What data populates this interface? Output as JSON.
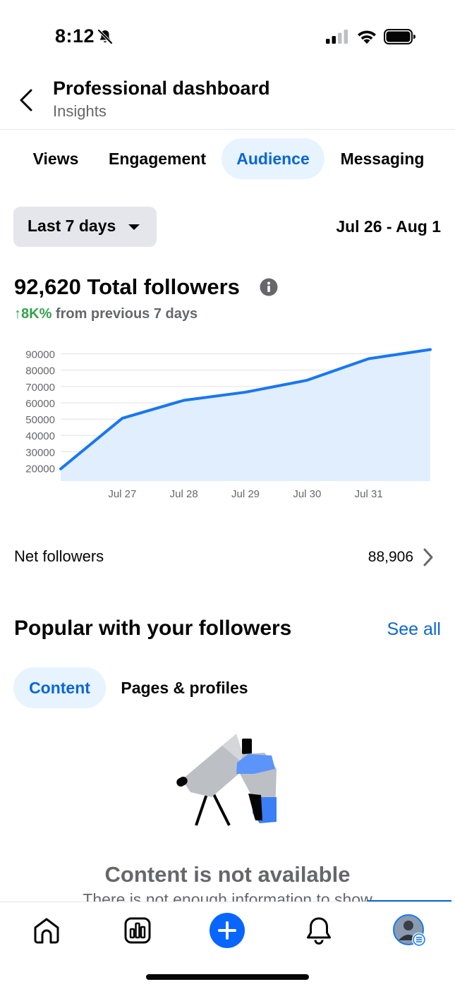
{
  "status_bar": {
    "time": "8:12"
  },
  "header": {
    "title": "Professional dashboard",
    "subtitle": "Insights"
  },
  "tabs": [
    "Views",
    "Engagement",
    "Audience",
    "Messaging"
  ],
  "active_tab": "Audience",
  "filter": {
    "range_label": "Last 7 days",
    "date_range": "Jul 26 - Aug 1"
  },
  "summary": {
    "total_followers": "92,620 Total followers",
    "growth_value": "↑8K%",
    "growth_text": "from previous 7 days"
  },
  "chart_data": {
    "type": "area",
    "x": [
      "Jul 26",
      "Jul 27",
      "Jul 28",
      "Jul 29",
      "Jul 30",
      "Jul 31",
      "Aug 1"
    ],
    "x_tick_labels": [
      "Jul 27",
      "Jul 28",
      "Jul 29",
      "Jul 30",
      "Jul 31"
    ],
    "series": [
      {
        "values": [
          19500,
          50500,
          61500,
          66500,
          73800,
          87000,
          92620
        ]
      }
    ],
    "y_ticks": [
      20000,
      30000,
      40000,
      50000,
      60000,
      70000,
      80000,
      90000
    ],
    "ylim": [
      12000,
      95000
    ],
    "grid": true,
    "colors": {
      "line": "#1877f2",
      "fill": "#e1eefd"
    }
  },
  "net_followers": {
    "label": "Net followers",
    "value": "88,906"
  },
  "popular": {
    "title": "Popular with your followers",
    "see_all": "See all",
    "subtabs": [
      "Content",
      "Pages & profiles"
    ],
    "active_subtab": "Content",
    "empty_title": "Content is not available",
    "empty_subtitle": "There is not enough information to show"
  },
  "bottom_nav": {
    "items": [
      "home-icon",
      "dashboard-icon",
      "create-icon",
      "notifications-icon",
      "profile-avatar"
    ]
  },
  "colors": {
    "accent": "#0a66d8",
    "positive": "#31a24c",
    "muted": "#65676b"
  }
}
